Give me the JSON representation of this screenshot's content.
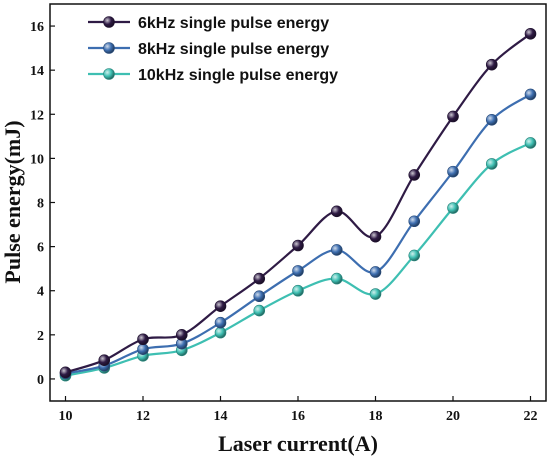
{
  "chart_data": {
    "type": "line",
    "xlabel": "Laser current(A)",
    "ylabel": "Pulse energy(mJ)",
    "xlim": [
      9.6,
      22.4
    ],
    "ylim": [
      -1,
      17
    ],
    "x_ticks": [
      10,
      12,
      14,
      16,
      18,
      20,
      22
    ],
    "y_ticks": [
      0,
      2,
      4,
      6,
      8,
      10,
      12,
      14,
      16
    ],
    "x": [
      10,
      11,
      12,
      13,
      14,
      15,
      16,
      17,
      18,
      19,
      20,
      21,
      22
    ],
    "grid": false,
    "legend_position": "top-left",
    "series": [
      {
        "name": "6kHz single pulse energy",
        "color": "#2f1b45",
        "values": [
          0.3,
          0.85,
          1.8,
          2.0,
          3.3,
          4.55,
          6.05,
          7.6,
          6.45,
          9.25,
          11.9,
          14.25,
          15.65
        ]
      },
      {
        "name": "8kHz single pulse energy",
        "color": "#3d6eb0",
        "values": [
          0.25,
          0.6,
          1.35,
          1.6,
          2.55,
          3.75,
          4.9,
          5.85,
          4.85,
          7.15,
          9.4,
          11.75,
          12.9
        ]
      },
      {
        "name": "10kHz single pulse energy",
        "color": "#3ebfb2",
        "values": [
          0.15,
          0.5,
          1.05,
          1.3,
          2.1,
          3.1,
          4.0,
          4.55,
          3.85,
          5.6,
          7.75,
          9.75,
          10.7
        ]
      }
    ]
  }
}
